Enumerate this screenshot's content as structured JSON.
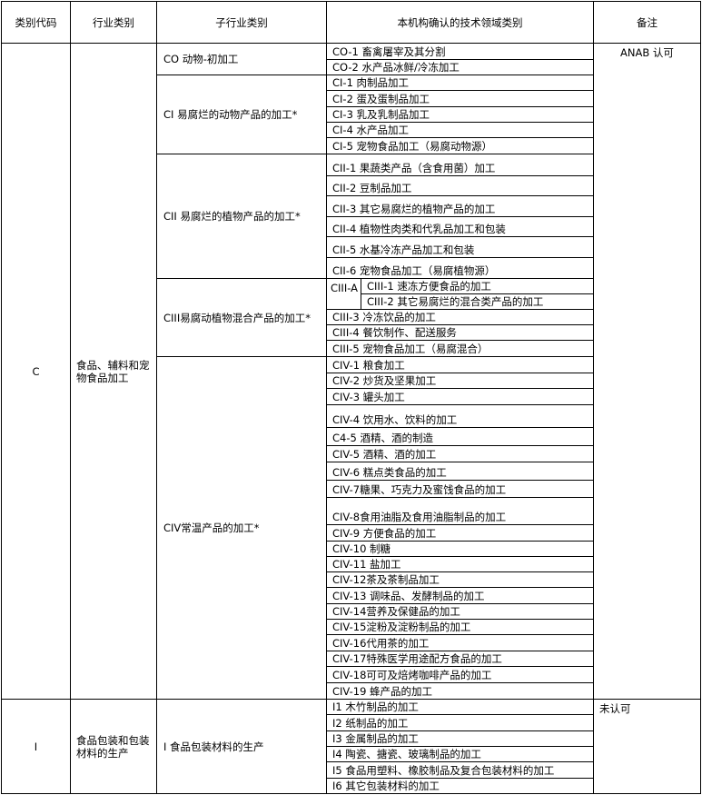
{
  "headers": [
    "类别代码",
    "行业类别",
    "子行业类别",
    "本机构确认的技术领域类别",
    "备注"
  ],
  "categories": [
    {
      "code": "C",
      "industry": "食品、辅料和宠物食品加工",
      "note": "ANAB 认可",
      "subs": [
        {
          "name": "CO 动物-初加工",
          "items": [
            "CO-1 畜禽屠宰及其分割",
            "CO-2  水产品冰鲜/冷冻加工"
          ]
        },
        {
          "name": "CI 易腐烂的动物产品的加工*",
          "items": [
            "CI-1 肉制品加工",
            "CI-2 蛋及蛋制品加工",
            "CI-3 乳及乳制品加工",
            "CI-4 水产品加工",
            "CI-5  宠物食品加工（易腐动物源）"
          ]
        },
        {
          "name": "CII 易腐烂的植物产品的加工*",
          "items": [
            "CII-1 果蔬类产品（含食用菌）加工",
            "CII-2 豆制品加工",
            "CII-3  其它易腐烂的植物产品的加工",
            "CII-4  植物性肉类和代乳品加工和包装",
            "CII-5 水基冷冻产品加工和包装",
            "CII-6  宠物食品加工（易腐植物源）"
          ]
        },
        {
          "name": "CIII易腐动植物混合产品的加工*",
          "items": [
            {
              "group": "CIII-A",
              "items": [
                "CIII-1 速冻方便食品的加工",
                "CIII-2 其它易腐烂的混合类产品的加工"
              ]
            },
            "CIII-3 冷冻饮品的加工",
            "CIII-4  餐饮制作、配送服务",
            "CIII-5  宠物食品加工（易腐混合）"
          ]
        },
        {
          "name": "CIV常温产品的加工*",
          "items": [
            "CIV-1 粮食加工",
            "CIV-2 炒货及坚果加工",
            "CIV-3 罐头加工",
            "CIV-4 饮用水、饮料的加工",
            "C4-5 酒精、酒的制造",
            "CIV-5 酒精、酒的加工",
            "CIV-6 糕点类食品的加工",
            "CIV-7糖果、巧克力及蜜饯食品的加工",
            "CIV-8食用油脂及食用油脂制品的加工",
            "CIV-9  方便食品的加工",
            "CIV-10  制糖",
            "CIV-11  盐加工",
            "CIV-12茶及茶制品加工",
            "CIV-13  调味品、发酵制品的加工",
            "CIV-14营养及保健品的加工",
            "CIV-15淀粉及淀粉制品的加工",
            "CIV-16代用茶的加工",
            "CIV-17特殊医学用途配方食品的加工",
            "CIV-18可可及焙烤咖啡产品的加工",
            "CIV-19  蜂产品的加工"
          ]
        }
      ]
    },
    {
      "code": "I",
      "industry": "食品包装和包装材料的生产",
      "note": "未认可",
      "subs": [
        {
          "name": "I 食品包装材料的生产",
          "items": [
            "I1 木竹制品的加工",
            "I2 纸制品的加工",
            "I3 金属制品的加工",
            "I4 陶瓷、搪瓷、玻璃制品的加工",
            "I5 食品用塑料、橡胶制品及复合包装材料的加工",
            "I6 其它包装材料的加工"
          ]
        }
      ]
    }
  ]
}
